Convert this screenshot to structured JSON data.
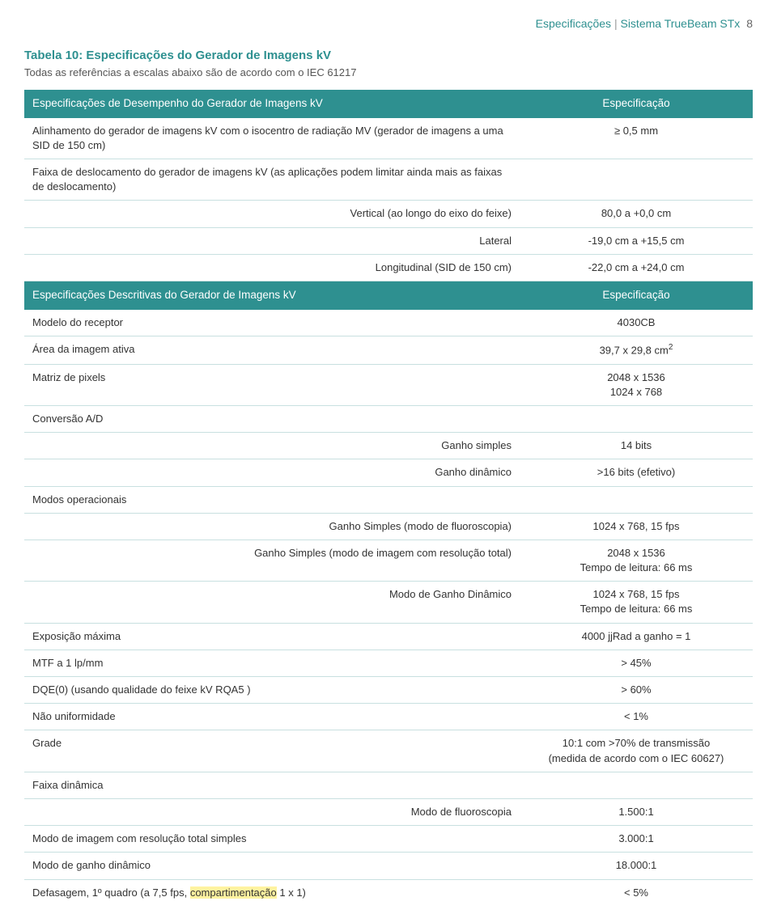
{
  "header": {
    "left": "Especificações",
    "right": "Sistema TrueBeam STx",
    "page": "8"
  },
  "title": "Tabela 10: Especificações do Gerador de Imagens kV",
  "subtitle": "Todas as referências a escalas abaixo são de acordo com o IEC 61217",
  "section1": {
    "header_left": "Especificações de Desempenho do Gerador de Imagens kV",
    "header_right": "Especificação",
    "rows": [
      {
        "left": "Alinhamento do gerador de imagens kV com o isocentro de radiação MV (gerador de imagens a uma SID de 150 cm)",
        "right": "≥ 0,5 mm"
      },
      {
        "left": "Faixa de deslocamento do gerador de imagens kV (as aplicações podem limitar ainda mais as faixas de deslocamento)",
        "right": ""
      },
      {
        "left": "Vertical (ao longo do eixo do feixe)",
        "right": "80,0 a +0,0 cm",
        "align": "right"
      },
      {
        "left": "Lateral",
        "right": "-19,0 cm a +15,5 cm",
        "align": "right"
      },
      {
        "left": "Longitudinal (SID de 150 cm)",
        "right": "-22,0 cm a +24,0 cm",
        "align": "right"
      }
    ]
  },
  "section2": {
    "header_left": "Especificações Descritivas do Gerador de Imagens kV",
    "header_right": "Especificação",
    "rows": [
      {
        "left": "Modelo do receptor",
        "right": "4030CB"
      },
      {
        "left": "Área da imagem ativa",
        "right": "39,7 x 29,8 cm²",
        "sup": true
      },
      {
        "left": "Matriz de pixels",
        "right": "2048 x 1536\n1024 x 768"
      },
      {
        "left": "Conversão A/D",
        "right": ""
      },
      {
        "left": "Ganho simples",
        "right": "14 bits",
        "align": "right"
      },
      {
        "left": "Ganho dinâmico",
        "right": ">16 bits (efetivo)",
        "align": "right"
      },
      {
        "left": "Modos operacionais",
        "right": ""
      },
      {
        "left": "Ganho Simples (modo de fluoroscopia)",
        "right": "1024 x 768, 15 fps",
        "align": "right"
      },
      {
        "left": "Ganho Simples (modo de imagem com resolução total)",
        "right": "2048 x 1536\nTempo de leitura: 66 ms",
        "align": "right"
      },
      {
        "left": "Modo de Ganho Dinâmico",
        "right": "1024 x 768, 15 fps\nTempo de leitura: 66 ms",
        "align": "right"
      },
      {
        "left": "Exposição máxima",
        "right": "4000 jjRad a ganho = 1"
      },
      {
        "left": "MTF a 1 lp/mm",
        "right": "> 45%"
      },
      {
        "left": "DQE(0) (usando qualidade do feixe kV RQA5 )",
        "right": "> 60%"
      },
      {
        "left": "Não uniformidade",
        "right": "< 1%"
      },
      {
        "left": "Grade",
        "right": "10:1 com >70% de transmissão\n(medida de acordo com o IEC 60627)"
      },
      {
        "left": "Faixa dinâmica",
        "right": ""
      },
      {
        "left": "Modo de fluoroscopia",
        "right": "1.500:1",
        "align": "right"
      },
      {
        "left": "Modo de imagem com resolução total simples",
        "right": "3.000:1"
      },
      {
        "left": "Modo de ganho dinâmico",
        "right": "18.000:1"
      }
    ],
    "last_row": {
      "prefix": "Defasagem, 1º quadro (a 7,5 fps, ",
      "highlight": "compartimentação",
      "suffix": " 1 x 1)",
      "right": "< 5%"
    }
  },
  "colors": {
    "teal": "#2e9090",
    "border": "#c8e0e0",
    "highlight": "#fff3a0"
  }
}
